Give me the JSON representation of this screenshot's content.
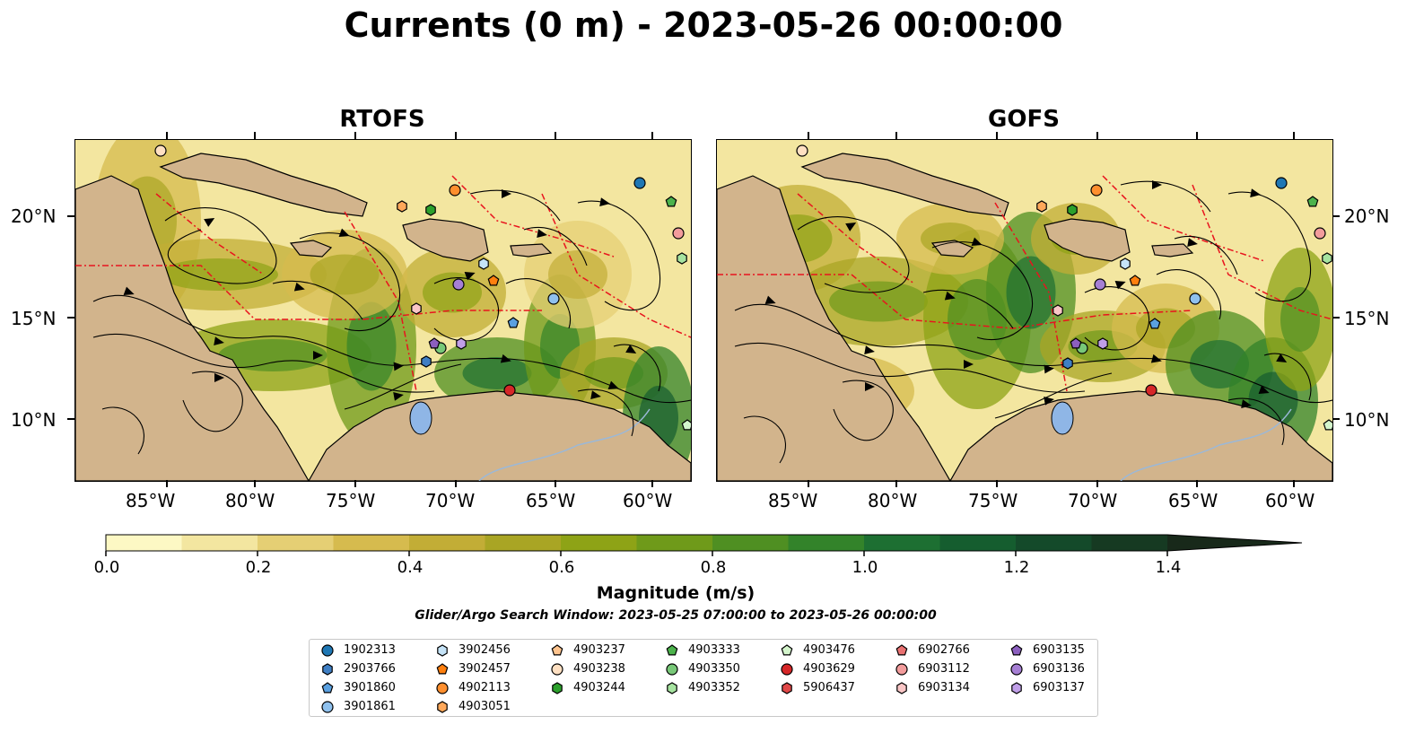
{
  "title": "Currents (0 m) - 2023-05-26 00:00:00",
  "panels": [
    {
      "title": "RTOFS"
    },
    {
      "title": "GOFS"
    }
  ],
  "x_ticks": [
    "85°W",
    "80°W",
    "75°W",
    "70°W",
    "65°W",
    "60°W"
  ],
  "y_ticks": [
    "20°N",
    "15°N",
    "10°N"
  ],
  "colorbar": {
    "label": "Magnitude (m/s)",
    "tick_labels": [
      "0.0",
      "0.2",
      "0.4",
      "0.6",
      "0.8",
      "1.0",
      "1.2",
      "1.4"
    ],
    "range": [
      0,
      1.5
    ],
    "extend": "max",
    "colors": [
      "#fdf8c4",
      "#f3e6a0",
      "#e5cf74",
      "#d6bb4e",
      "#c2ad36",
      "#a9a524",
      "#8ea316",
      "#6f9a1a",
      "#4f8f22",
      "#33832a",
      "#1d6f32",
      "#155d2f",
      "#144a2a",
      "#163a22",
      "#18291a"
    ]
  },
  "search_window": "Glider/Argo Search Window: 2023-05-25 07:00:00 to 2023-05-26 00:00:00",
  "legend": [
    {
      "id": "1902313",
      "marker": "circle",
      "color": "#1f77b4"
    },
    {
      "id": "2903766",
      "marker": "hexagon",
      "color": "#3f7fc4"
    },
    {
      "id": "3901860",
      "marker": "pentagon",
      "color": "#5aa0e0"
    },
    {
      "id": "3901861",
      "marker": "circle",
      "color": "#8fc1ee"
    },
    {
      "id": "3902456",
      "marker": "hexagon",
      "color": "#c5e3f7"
    },
    {
      "id": "3902457",
      "marker": "pentagon",
      "color": "#ff7f0e"
    },
    {
      "id": "4902113",
      "marker": "circle",
      "color": "#ff8f2e"
    },
    {
      "id": "4903051",
      "marker": "hexagon",
      "color": "#ffa85a"
    },
    {
      "id": "4903237",
      "marker": "pentagon",
      "color": "#ffc48e"
    },
    {
      "id": "4903238",
      "marker": "circle",
      "color": "#ffe0c2"
    },
    {
      "id": "4903244",
      "marker": "hexagon",
      "color": "#2ca02c"
    },
    {
      "id": "4903333",
      "marker": "pentagon",
      "color": "#4cb34c"
    },
    {
      "id": "4903350",
      "marker": "circle",
      "color": "#78c878"
    },
    {
      "id": "4903352",
      "marker": "hexagon",
      "color": "#a6e3a0"
    },
    {
      "id": "4903476",
      "marker": "pentagon",
      "color": "#d4f5cc"
    },
    {
      "id": "4903629",
      "marker": "circle",
      "color": "#d62728"
    },
    {
      "id": "5906437",
      "marker": "hexagon",
      "color": "#e04848"
    },
    {
      "id": "6902766",
      "marker": "pentagon",
      "color": "#ea7272"
    },
    {
      "id": "6903112",
      "marker": "circle",
      "color": "#f29c9c"
    },
    {
      "id": "6903134",
      "marker": "hexagon",
      "color": "#f9c6c6"
    },
    {
      "id": "6903135",
      "marker": "pentagon",
      "color": "#8c5fbf"
    },
    {
      "id": "6903136",
      "marker": "circle",
      "color": "#a67fd4"
    },
    {
      "id": "6903137",
      "marker": "hexagon",
      "color": "#c09fe8"
    }
  ]
}
